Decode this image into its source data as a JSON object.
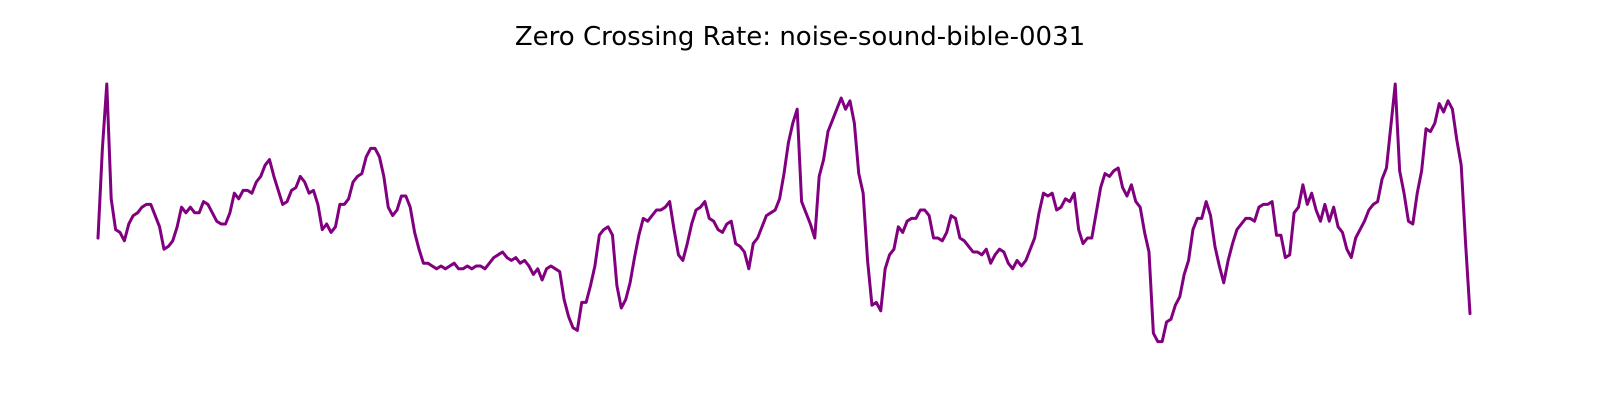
{
  "chart_data": {
    "type": "line",
    "title": "Zero Crossing Rate: noise-sound-bible-0031",
    "xlabel": "",
    "ylabel": "",
    "axes_visible": false,
    "grid": false,
    "legend": "none",
    "ylim": [
      0.0,
      1.0
    ],
    "series": [
      {
        "color": "#800080",
        "values": [
          0.4,
          0.72,
          0.95,
          0.54,
          0.43,
          0.42,
          0.39,
          0.45,
          0.48,
          0.49,
          0.51,
          0.52,
          0.52,
          0.48,
          0.44,
          0.36,
          0.37,
          0.39,
          0.44,
          0.51,
          0.49,
          0.51,
          0.49,
          0.49,
          0.53,
          0.52,
          0.49,
          0.46,
          0.45,
          0.45,
          0.49,
          0.56,
          0.54,
          0.57,
          0.57,
          0.56,
          0.6,
          0.62,
          0.66,
          0.68,
          0.62,
          0.57,
          0.52,
          0.53,
          0.57,
          0.58,
          0.62,
          0.6,
          0.56,
          0.57,
          0.52,
          0.43,
          0.45,
          0.42,
          0.44,
          0.52,
          0.52,
          0.54,
          0.6,
          0.62,
          0.63,
          0.69,
          0.72,
          0.72,
          0.69,
          0.62,
          0.51,
          0.48,
          0.5,
          0.55,
          0.55,
          0.51,
          0.42,
          0.36,
          0.31,
          0.31,
          0.3,
          0.29,
          0.3,
          0.29,
          0.3,
          0.31,
          0.29,
          0.29,
          0.3,
          0.29,
          0.3,
          0.3,
          0.29,
          0.31,
          0.33,
          0.34,
          0.35,
          0.33,
          0.32,
          0.33,
          0.31,
          0.32,
          0.3,
          0.27,
          0.29,
          0.25,
          0.29,
          0.3,
          0.29,
          0.28,
          0.18,
          0.12,
          0.08,
          0.07,
          0.17,
          0.17,
          0.23,
          0.3,
          0.41,
          0.43,
          0.44,
          0.41,
          0.23,
          0.15,
          0.18,
          0.24,
          0.33,
          0.41,
          0.47,
          0.46,
          0.48,
          0.5,
          0.5,
          0.51,
          0.53,
          0.43,
          0.34,
          0.32,
          0.38,
          0.45,
          0.5,
          0.51,
          0.53,
          0.47,
          0.46,
          0.43,
          0.42,
          0.45,
          0.46,
          0.38,
          0.37,
          0.35,
          0.29,
          0.38,
          0.4,
          0.44,
          0.48,
          0.49,
          0.5,
          0.54,
          0.63,
          0.74,
          0.81,
          0.86,
          0.53,
          0.49,
          0.45,
          0.4,
          0.62,
          0.68,
          0.78,
          0.82,
          0.86,
          0.9,
          0.86,
          0.89,
          0.81,
          0.63,
          0.56,
          0.32,
          0.16,
          0.17,
          0.14,
          0.29,
          0.34,
          0.36,
          0.44,
          0.42,
          0.46,
          0.47,
          0.47,
          0.5,
          0.5,
          0.48,
          0.4,
          0.4,
          0.39,
          0.42,
          0.48,
          0.47,
          0.4,
          0.39,
          0.37,
          0.35,
          0.35,
          0.34,
          0.36,
          0.31,
          0.34,
          0.36,
          0.35,
          0.31,
          0.29,
          0.32,
          0.3,
          0.32,
          0.36,
          0.4,
          0.49,
          0.56,
          0.55,
          0.56,
          0.5,
          0.51,
          0.54,
          0.53,
          0.56,
          0.43,
          0.38,
          0.4,
          0.4,
          0.49,
          0.58,
          0.63,
          0.62,
          0.64,
          0.65,
          0.58,
          0.55,
          0.59,
          0.53,
          0.51,
          0.42,
          0.35,
          0.06,
          0.03,
          0.03,
          0.1,
          0.11,
          0.16,
          0.19,
          0.27,
          0.32,
          0.43,
          0.47,
          0.47,
          0.53,
          0.48,
          0.37,
          0.3,
          0.24,
          0.32,
          0.38,
          0.43,
          0.45,
          0.47,
          0.47,
          0.46,
          0.51,
          0.52,
          0.52,
          0.53,
          0.41,
          0.41,
          0.33,
          0.34,
          0.49,
          0.51,
          0.59,
          0.52,
          0.56,
          0.5,
          0.46,
          0.52,
          0.46,
          0.51,
          0.44,
          0.42,
          0.36,
          0.33,
          0.4,
          0.43,
          0.46,
          0.5,
          0.52,
          0.53,
          0.61,
          0.65,
          0.8,
          0.95,
          0.64,
          0.56,
          0.46,
          0.45,
          0.56,
          0.64,
          0.79,
          0.78,
          0.81,
          0.88,
          0.85,
          0.89,
          0.86,
          0.75,
          0.66,
          0.38,
          0.13
        ]
      }
    ]
  }
}
